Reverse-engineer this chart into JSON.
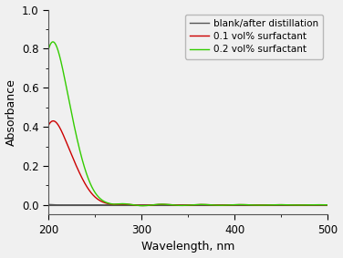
{
  "title": "",
  "xlabel": "Wavelength, nm",
  "ylabel": "Absorbance",
  "xlim": [
    200,
    500
  ],
  "ylim": [
    -0.05,
    1.0
  ],
  "yticks": [
    0.0,
    0.2,
    0.4,
    0.6,
    0.8,
    1.0
  ],
  "xticks": [
    200,
    300,
    400,
    500
  ],
  "legend": [
    {
      "label": "blank/after distillation",
      "color": "#555555"
    },
    {
      "label": "0.1 vol% surfactant",
      "color": "#cc0000"
    },
    {
      "label": "0.2 vol% surfactant",
      "color": "#33cc00"
    }
  ],
  "blank_color": "#555555",
  "red_color": "#cc0000",
  "green_color": "#33cc00",
  "peak_wavelength_red": 215,
  "peak_absorbance_red": 0.43,
  "peak_wavelength_green": 213,
  "peak_absorbance_green": 0.835,
  "sigma_red": 18,
  "sigma_green": 18,
  "background_color": "#f0f0f0"
}
